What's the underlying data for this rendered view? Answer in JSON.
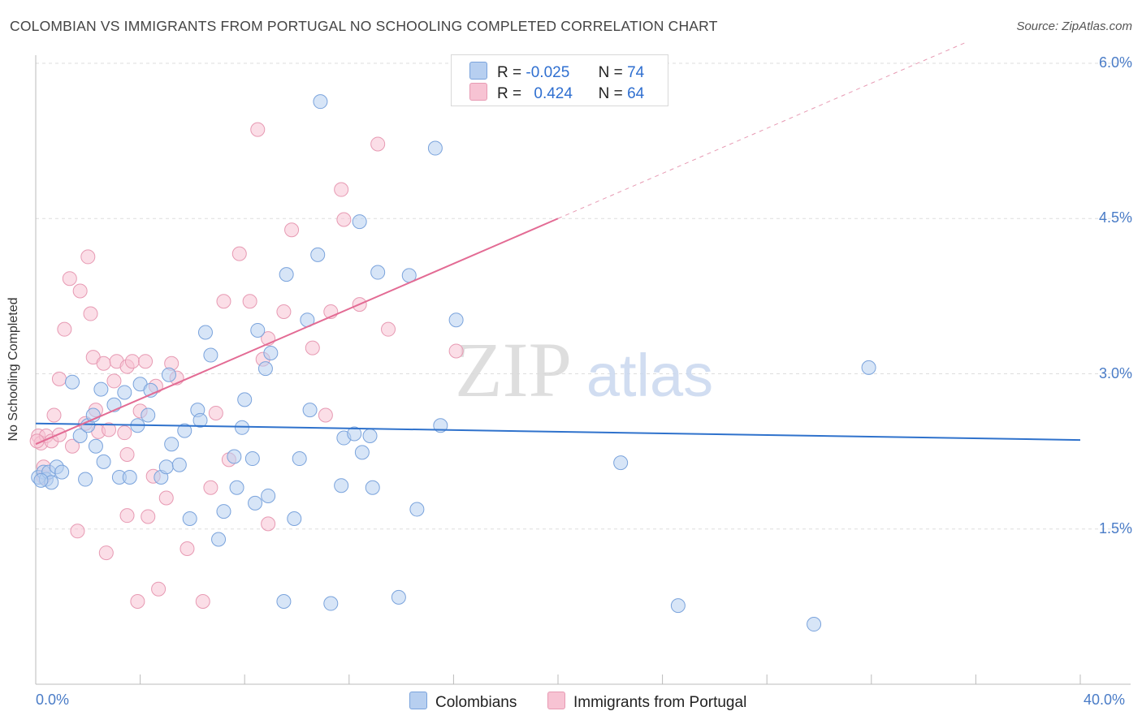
{
  "title": "COLOMBIAN VS IMMIGRANTS FROM PORTUGAL NO SCHOOLING COMPLETED CORRELATION CHART",
  "source": "Source: ZipAtlas.com",
  "watermark": {
    "zip": "ZIP",
    "atlas": "atlas"
  },
  "legend": {
    "colombians": {
      "r_label": "R =",
      "r_value": "-0.025",
      "n_label": "N =",
      "n_value": "74"
    },
    "portugal": {
      "r_label": "R =",
      "r_value": "0.424",
      "n_label": "N =",
      "n_value": "64"
    }
  },
  "bottom_legend": {
    "colombians": "Colombians",
    "portugal": "Immigrants from Portugal"
  },
  "colors": {
    "blue_fill": "#b7cff0",
    "blue_stroke": "#7aa3dc",
    "blue_line": "#2f72cc",
    "pink_fill": "#f7c3d3",
    "pink_stroke": "#e79ab3",
    "pink_line": "#e36b94",
    "grid": "#dddddd",
    "tick_text": "#4a7cc7"
  },
  "chart_data": {
    "type": "scatter",
    "title": "COLOMBIAN VS IMMIGRANTS FROM PORTUGAL NO SCHOOLING COMPLETED CORRELATION CHART",
    "xlabel": "",
    "ylabel": "No Schooling Completed",
    "xlim": [
      0,
      40
    ],
    "ylim": [
      0,
      6.3
    ],
    "x_tick_labels": [
      "0.0%",
      "40.0%"
    ],
    "y_ticks": [
      1.5,
      3.0,
      4.5,
      6.0
    ],
    "y_tick_labels": [
      "1.5%",
      "3.0%",
      "4.5%",
      "6.0%"
    ],
    "grid": "horizontal dashed",
    "legend_position": "top-center",
    "series": [
      {
        "name": "Colombians",
        "color": "#b7cff0",
        "r": -0.025,
        "n": 74,
        "trend": {
          "x": [
            0,
            40
          ],
          "y": [
            2.52,
            2.36
          ],
          "style": "solid"
        },
        "points": [
          [
            0.1,
            2.0
          ],
          [
            0.3,
            2.05
          ],
          [
            0.4,
            1.98
          ],
          [
            0.5,
            2.05
          ],
          [
            0.6,
            1.95
          ],
          [
            0.8,
            2.1
          ],
          [
            1.0,
            2.05
          ],
          [
            1.4,
            2.92
          ],
          [
            1.9,
            1.98
          ],
          [
            1.7,
            2.4
          ],
          [
            2.0,
            2.5
          ],
          [
            2.2,
            2.6
          ],
          [
            2.3,
            2.3
          ],
          [
            2.5,
            2.85
          ],
          [
            2.6,
            2.15
          ],
          [
            3.0,
            2.7
          ],
          [
            3.2,
            2.0
          ],
          [
            3.4,
            2.82
          ],
          [
            3.6,
            2.0
          ],
          [
            3.9,
            2.5
          ],
          [
            4.0,
            2.9
          ],
          [
            4.3,
            2.6
          ],
          [
            4.4,
            2.84
          ],
          [
            4.8,
            2.0
          ],
          [
            5.0,
            2.1
          ],
          [
            5.1,
            2.99
          ],
          [
            5.2,
            2.32
          ],
          [
            5.5,
            2.12
          ],
          [
            5.7,
            2.45
          ],
          [
            5.9,
            1.6
          ],
          [
            6.2,
            2.65
          ],
          [
            6.3,
            2.55
          ],
          [
            6.5,
            3.4
          ],
          [
            6.7,
            3.18
          ],
          [
            7.0,
            1.4
          ],
          [
            7.2,
            1.67
          ],
          [
            7.6,
            2.2
          ],
          [
            7.7,
            1.9
          ],
          [
            7.9,
            2.48
          ],
          [
            8.0,
            2.75
          ],
          [
            8.3,
            2.18
          ],
          [
            8.4,
            1.75
          ],
          [
            8.5,
            3.42
          ],
          [
            8.8,
            3.05
          ],
          [
            8.9,
            1.82
          ],
          [
            9.0,
            3.2
          ],
          [
            9.5,
            0.8
          ],
          [
            9.6,
            3.96
          ],
          [
            9.9,
            1.6
          ],
          [
            10.1,
            2.18
          ],
          [
            10.4,
            3.52
          ],
          [
            10.5,
            2.65
          ],
          [
            10.8,
            4.15
          ],
          [
            10.9,
            5.63
          ],
          [
            11.3,
            0.78
          ],
          [
            11.7,
            1.92
          ],
          [
            11.8,
            2.38
          ],
          [
            12.2,
            2.42
          ],
          [
            12.4,
            4.47
          ],
          [
            12.5,
            2.24
          ],
          [
            12.8,
            2.4
          ],
          [
            12.9,
            1.9
          ],
          [
            13.1,
            3.98
          ],
          [
            13.9,
            0.84
          ],
          [
            14.3,
            3.95
          ],
          [
            14.6,
            1.69
          ],
          [
            15.3,
            5.18
          ],
          [
            15.5,
            2.5
          ],
          [
            16.1,
            3.52
          ],
          [
            22.4,
            2.14
          ],
          [
            24.6,
            0.76
          ],
          [
            31.9,
            3.06
          ],
          [
            29.8,
            0.58
          ],
          [
            0.2,
            1.97
          ]
        ]
      },
      {
        "name": "Immigrants from Portugal",
        "color": "#f7c3d3",
        "r": 0.424,
        "n": 64,
        "trend": {
          "x": [
            0,
            20
          ],
          "y": [
            2.32,
            4.5
          ],
          "style": "solid"
        },
        "trend_dashed": {
          "x": [
            20,
            35.6
          ],
          "y": [
            4.5,
            6.2
          ],
          "style": "dashed"
        },
        "points": [
          [
            0.1,
            2.4
          ],
          [
            0.2,
            2.33
          ],
          [
            0.3,
            2.0
          ],
          [
            0.4,
            2.4
          ],
          [
            0.6,
            2.35
          ],
          [
            0.7,
            2.6
          ],
          [
            0.9,
            2.41
          ],
          [
            0.9,
            2.95
          ],
          [
            1.1,
            3.43
          ],
          [
            1.3,
            3.92
          ],
          [
            1.4,
            2.3
          ],
          [
            1.6,
            1.48
          ],
          [
            1.7,
            3.8
          ],
          [
            1.9,
            2.52
          ],
          [
            2.0,
            4.13
          ],
          [
            2.1,
            3.58
          ],
          [
            2.2,
            3.16
          ],
          [
            2.3,
            2.65
          ],
          [
            2.4,
            2.44
          ],
          [
            2.6,
            3.1
          ],
          [
            2.7,
            1.27
          ],
          [
            2.8,
            2.46
          ],
          [
            3.0,
            2.93
          ],
          [
            3.1,
            3.12
          ],
          [
            3.4,
            2.43
          ],
          [
            3.5,
            1.63
          ],
          [
            3.5,
            3.07
          ],
          [
            3.5,
            2.22
          ],
          [
            3.7,
            3.12
          ],
          [
            3.9,
            0.8
          ],
          [
            4.0,
            2.64
          ],
          [
            4.2,
            3.12
          ],
          [
            4.3,
            1.62
          ],
          [
            4.5,
            2.01
          ],
          [
            4.6,
            2.88
          ],
          [
            4.7,
            0.92
          ],
          [
            5.0,
            1.8
          ],
          [
            5.2,
            3.1
          ],
          [
            5.4,
            2.96
          ],
          [
            5.8,
            1.31
          ],
          [
            6.4,
            0.8
          ],
          [
            6.7,
            1.9
          ],
          [
            6.9,
            2.62
          ],
          [
            7.2,
            3.7
          ],
          [
            7.4,
            2.17
          ],
          [
            7.8,
            4.16
          ],
          [
            8.2,
            3.7
          ],
          [
            8.5,
            5.36
          ],
          [
            8.7,
            3.14
          ],
          [
            8.9,
            3.34
          ],
          [
            8.9,
            1.55
          ],
          [
            9.5,
            3.6
          ],
          [
            9.8,
            4.39
          ],
          [
            10.6,
            3.25
          ],
          [
            11.1,
            2.6
          ],
          [
            11.3,
            3.6
          ],
          [
            11.7,
            4.78
          ],
          [
            11.8,
            4.49
          ],
          [
            12.4,
            3.67
          ],
          [
            13.1,
            5.22
          ],
          [
            13.5,
            3.43
          ],
          [
            16.1,
            3.22
          ],
          [
            0.3,
            2.1
          ],
          [
            0.05,
            2.35
          ]
        ]
      }
    ]
  }
}
